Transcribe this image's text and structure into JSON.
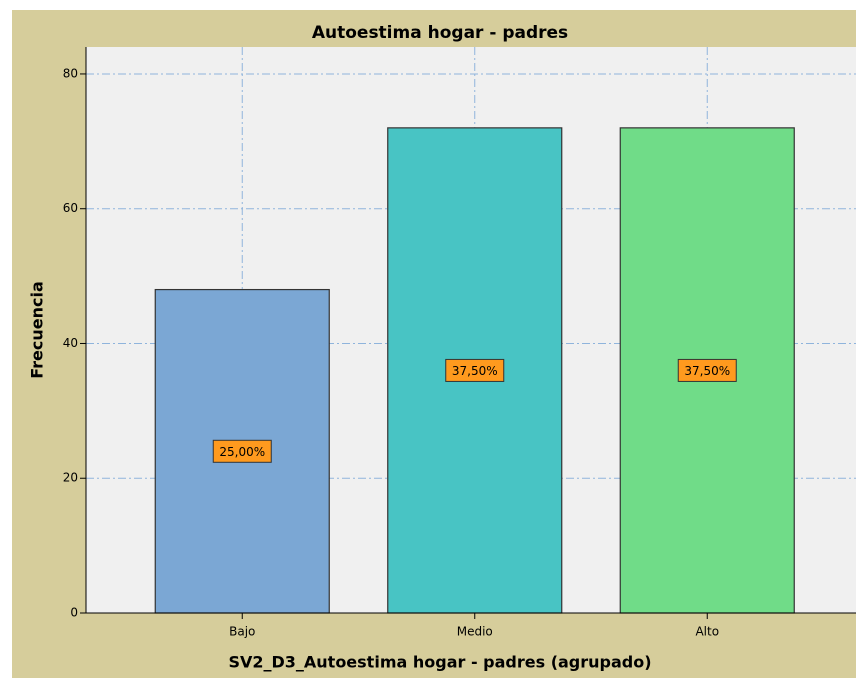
{
  "chart_data": {
    "type": "bar",
    "title": "Autoestima hogar - padres",
    "x_label": "SV2_D3_Autoestima hogar - padres (agrupado)",
    "y_label": "Frecuencia",
    "categories": [
      "Bajo",
      "Medio",
      "Alto"
    ],
    "values": [
      48,
      72,
      72
    ],
    "colors": [
      "#7ba7d4",
      "#48c4c4",
      "#70dc88"
    ],
    "percent_values": [
      25,
      37.5,
      37.5
    ],
    "percent_labels": [
      "25,00%",
      "37,50%",
      "37,50%"
    ],
    "ylim": [
      0,
      84
    ],
    "yticks": [
      0,
      20,
      40,
      60,
      80
    ],
    "grid": true
  }
}
